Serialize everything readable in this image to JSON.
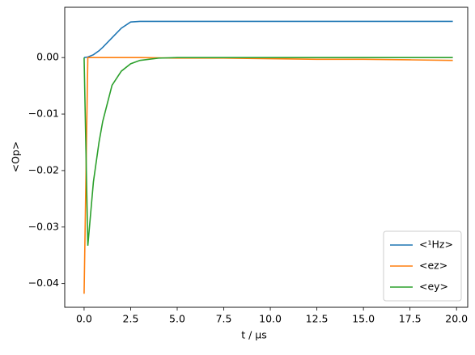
{
  "chart_data": {
    "type": "line",
    "xlabel": "t / μs",
    "ylabel": "<Op>",
    "x": [
      0,
      0.2,
      0.5,
      0.8,
      1.0,
      1.5,
      2.0,
      2.5,
      3.0,
      4.0,
      5.0,
      7.5,
      10,
      12.5,
      15,
      17.5,
      19.8
    ],
    "series": [
      {
        "name": "<¹Hz>",
        "color": "#1f77b4",
        "values": [
          0,
          0.0001,
          0.0005,
          0.0012,
          0.0018,
          0.0035,
          0.0052,
          0.0063,
          0.0064,
          0.0064,
          0.0064,
          0.0064,
          0.0064,
          0.0064,
          0.0064,
          0.0064,
          0.0064
        ]
      },
      {
        "name": "<ez>",
        "color": "#ff7f0e",
        "values": [
          -0.0418,
          0,
          0,
          0,
          0,
          0,
          0,
          0,
          0,
          -5e-05,
          -0.0001,
          -0.0001,
          -0.0002,
          -0.0003,
          -0.0003,
          -0.0004,
          -0.0005
        ]
      },
      {
        "name": "<ey>",
        "color": "#2ca02c",
        "values": [
          0,
          -0.0333,
          -0.022,
          -0.015,
          -0.0113,
          -0.0049,
          -0.0024,
          -0.0011,
          -0.0005,
          -0.0001,
          0,
          0,
          0,
          0,
          0,
          0,
          0
        ]
      }
    ],
    "xlim": [
      -1.04,
      20.6
    ],
    "ylim": [
      -0.0442,
      0.0089
    ],
    "xticks": [
      {
        "value": 0,
        "label": "0.0"
      },
      2.5,
      {
        "value": 5,
        "label": "5.0"
      },
      7.5,
      {
        "value": 10,
        "label": "10.0"
      },
      12.5,
      {
        "value": 15,
        "label": "15.0"
      },
      17.5,
      {
        "value": 20,
        "label": "20.0"
      }
    ],
    "yticks": [
      {
        "value": -0.04,
        "label": "−0.04"
      },
      {
        "value": -0.03,
        "label": "−0.03"
      },
      {
        "value": -0.02,
        "label": "−0.02"
      },
      {
        "value": -0.01,
        "label": "−0.01"
      },
      {
        "value": 0,
        "label": "0.00"
      }
    ],
    "legend": "lower right"
  }
}
